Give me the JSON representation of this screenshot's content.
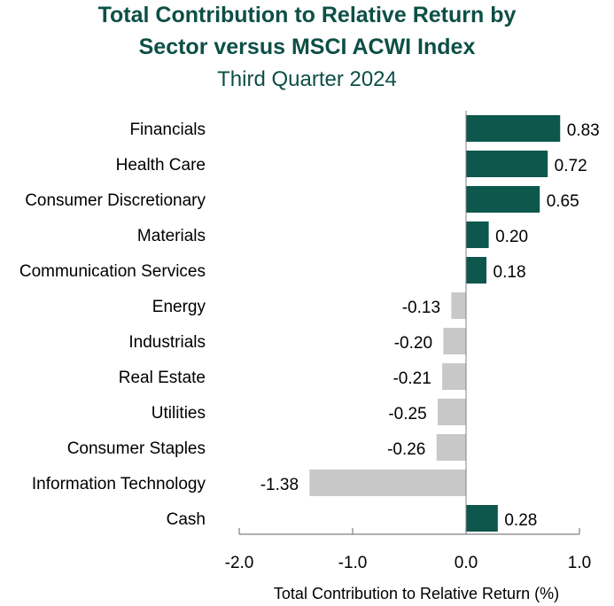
{
  "chart_data": {
    "type": "bar",
    "orientation": "horizontal",
    "title": "Total Contribution to Relative Return by Sector versus MSCI ACWI Index",
    "title_lines": [
      "Total Contribution to Relative Return by",
      "Sector versus MSCI ACWI Index"
    ],
    "subtitle": "Third Quarter 2024",
    "xlabel": "Total Contribution to Relative Return (%)",
    "ylabel": "",
    "xlim": [
      -2.0,
      1.0
    ],
    "xticks": [
      -2.0,
      -1.0,
      0.0,
      1.0
    ],
    "xtick_labels": [
      "-2.0",
      "-1.0",
      "0.0",
      "1.0"
    ],
    "grid": false,
    "legend": "none",
    "categories": [
      "Financials",
      "Health Care",
      "Consumer Discretionary",
      "Materials",
      "Communication Services",
      "Energy",
      "Industrials",
      "Real Estate",
      "Utilities",
      "Consumer Staples",
      "Information Technology",
      "Cash"
    ],
    "values": [
      0.83,
      0.72,
      0.65,
      0.2,
      0.18,
      -0.13,
      -0.2,
      -0.21,
      -0.25,
      -0.26,
      -1.38,
      0.28
    ],
    "value_labels": [
      "0.83",
      "0.72",
      "0.65",
      "0.20",
      "0.18",
      "-0.13",
      "-0.20",
      "-0.21",
      "-0.25",
      "-0.26",
      "-1.38",
      "0.28"
    ],
    "colors": {
      "positive": "#0d574c",
      "negative": "#c8c8c8",
      "title": "#0d4f46",
      "axis": "#808080",
      "text": "#000000"
    }
  }
}
